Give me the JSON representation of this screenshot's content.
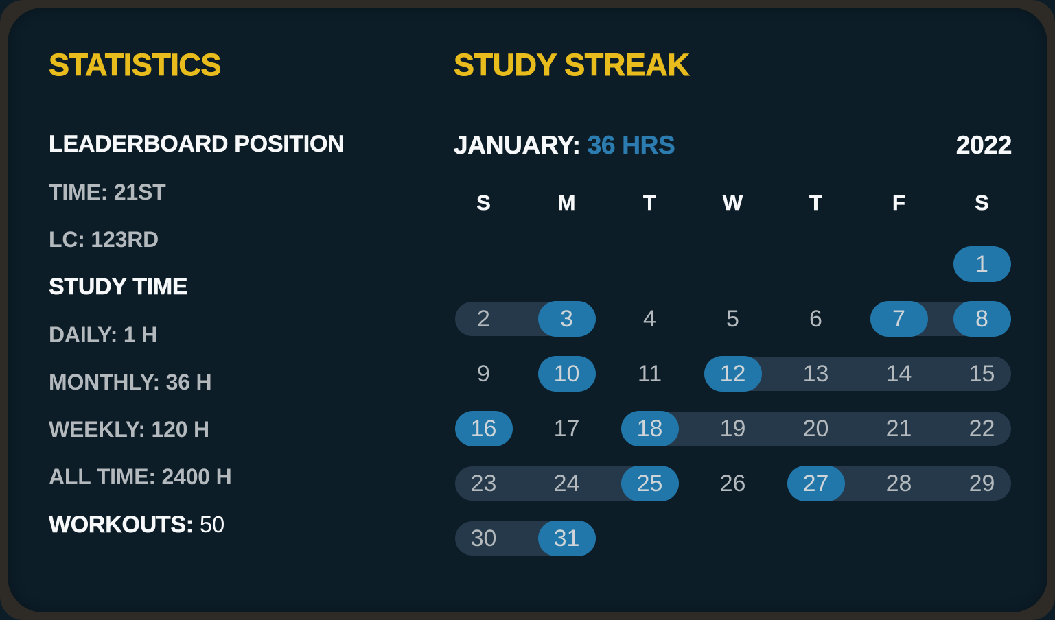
{
  "colors": {
    "accent_yellow": "#e9bc1d",
    "accent_blue": "#2d7cb0",
    "pill_blue": "#2177a9",
    "connector_slate": "#25394a",
    "card_bg": "#0c1d28",
    "frame": "#2e2a26",
    "text_white": "#f7f8f9",
    "text_gray": "#b4b9bd"
  },
  "statistics": {
    "title": "STATISTICS",
    "leaderboard_heading": "LEADERBOARD POSITION",
    "leaderboard_items": [
      {
        "label": "TIME:",
        "value": "21ST"
      },
      {
        "label": "LC:",
        "value": "123RD"
      }
    ],
    "study_time_heading": "STUDY TIME",
    "study_time_items": [
      {
        "label": "DAILY:",
        "value": "1 H"
      },
      {
        "label": "MONTHLY:",
        "value": "36 H"
      },
      {
        "label": "WEEKLY:",
        "value": "120 H"
      },
      {
        "label": "ALL TIME:",
        "value": "2400 H"
      }
    ],
    "workouts_label": "WORKOUTS:",
    "workouts_value": "50"
  },
  "streak": {
    "title": "STUDY STREAK",
    "month_label": "JANUARY:",
    "month_hours": "36 HRS",
    "year": "2022",
    "day_headers": [
      "S",
      "M",
      "T",
      "W",
      "T",
      "F",
      "S"
    ],
    "weeks": [
      {
        "spans": [],
        "days": [
          {
            "col": 6,
            "day": "1",
            "active": true
          }
        ]
      },
      {
        "spans": [
          {
            "start": 0,
            "end": 1
          },
          {
            "start": 5,
            "end": 6
          }
        ],
        "days": [
          {
            "col": 0,
            "day": "2"
          },
          {
            "col": 1,
            "day": "3",
            "active": true
          },
          {
            "col": 2,
            "day": "4"
          },
          {
            "col": 3,
            "day": "5"
          },
          {
            "col": 4,
            "day": "6"
          },
          {
            "col": 5,
            "day": "7",
            "active": true
          },
          {
            "col": 6,
            "day": "8",
            "active": true
          }
        ]
      },
      {
        "spans": [
          {
            "start": 3,
            "end": 6
          }
        ],
        "days": [
          {
            "col": 0,
            "day": "9"
          },
          {
            "col": 1,
            "day": "10",
            "active": true
          },
          {
            "col": 2,
            "day": "11"
          },
          {
            "col": 3,
            "day": "12",
            "active": true
          },
          {
            "col": 4,
            "day": "13"
          },
          {
            "col": 5,
            "day": "14"
          },
          {
            "col": 6,
            "day": "15"
          }
        ]
      },
      {
        "spans": [
          {
            "start": 2,
            "end": 6
          }
        ],
        "days": [
          {
            "col": 0,
            "day": "16",
            "active": true
          },
          {
            "col": 1,
            "day": "17"
          },
          {
            "col": 2,
            "day": "18",
            "active": true
          },
          {
            "col": 3,
            "day": "19"
          },
          {
            "col": 4,
            "day": "20"
          },
          {
            "col": 5,
            "day": "21"
          },
          {
            "col": 6,
            "day": "22"
          }
        ]
      },
      {
        "spans": [
          {
            "start": 0,
            "end": 2
          },
          {
            "start": 4,
            "end": 6
          }
        ],
        "days": [
          {
            "col": 0,
            "day": "23"
          },
          {
            "col": 1,
            "day": "24"
          },
          {
            "col": 2,
            "day": "25",
            "active": true
          },
          {
            "col": 3,
            "day": "26"
          },
          {
            "col": 4,
            "day": "27",
            "active": true
          },
          {
            "col": 5,
            "day": "28"
          },
          {
            "col": 6,
            "day": "29"
          }
        ]
      },
      {
        "spans": [
          {
            "start": 0,
            "end": 1
          }
        ],
        "days": [
          {
            "col": 0,
            "day": "30"
          },
          {
            "col": 1,
            "day": "31",
            "active": true
          }
        ]
      }
    ]
  }
}
